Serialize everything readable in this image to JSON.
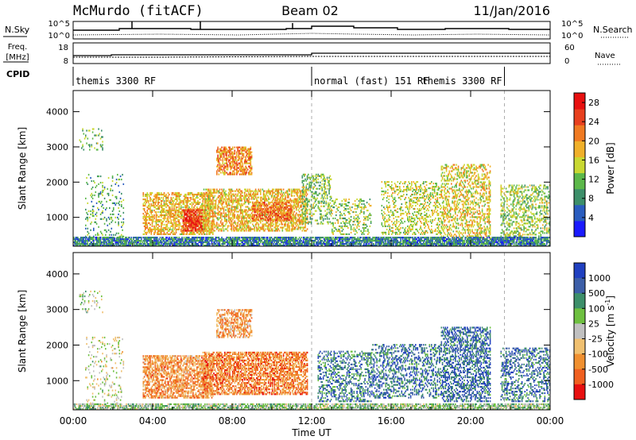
{
  "header": {
    "station": "McMurdo (fitACF)",
    "beam": "Beam 02",
    "date": "11/Jan/2016"
  },
  "noise_panel": {
    "left_label": "N.Sky",
    "right_label": "N.Search",
    "left_ticks": [
      "10^5",
      "10^0"
    ],
    "right_ticks": [
      "10^5",
      "10^0"
    ]
  },
  "freq_panel": {
    "left_label_line1": "Freq.",
    "left_label_line2": "[MHz]",
    "right_label": "Nave",
    "left_ticks": [
      "18",
      "8"
    ],
    "right_ticks": [
      "60",
      "0"
    ]
  },
  "cpid": {
    "label": "CPID",
    "segments": [
      {
        "text": "themis 3300 RF",
        "start_h": 0
      },
      {
        "text": "normal (fast) 151 RF",
        "start_h": 12
      },
      {
        "text": "themis 3300 RF",
        "start_h": 21.7
      }
    ]
  },
  "x_axis": {
    "label": "Time UT",
    "range_h": [
      0,
      24
    ],
    "ticks": [
      "00:00",
      "04:00",
      "08:00",
      "12:00",
      "16:00",
      "20:00",
      "00:00"
    ],
    "tick_hours": [
      0,
      4,
      8,
      12,
      16,
      20,
      24
    ]
  },
  "chart_data": [
    {
      "type": "heatmap",
      "title": "Power",
      "xlabel": "Time UT",
      "ylabel": "Slant Range [km]",
      "xlim": [
        0,
        24
      ],
      "ylim": [
        180,
        4600
      ],
      "yticks": [
        "1000",
        "2000",
        "3000",
        "4000"
      ],
      "ytick_values": [
        1000,
        2000,
        3000,
        4000
      ],
      "colorbar": {
        "label": "Power [dB]",
        "range": [
          0,
          30
        ],
        "ticks": [
          "4",
          "8",
          "12",
          "16",
          "20",
          "24",
          "28"
        ],
        "tick_values": [
          4,
          8,
          12,
          16,
          20,
          24,
          28
        ],
        "colors": [
          "#1a1aff",
          "#2a5dbf",
          "#3d8f6a",
          "#5cb84a",
          "#c9d832",
          "#f0b02a",
          "#f07a22",
          "#e8401e",
          "#e81010"
        ]
      },
      "echo_regions": [
        {
          "t0": 0.3,
          "t1": 1.5,
          "r0": 2900,
          "r1": 3500,
          "density": 0.18,
          "level": 0.4
        },
        {
          "t0": 0.6,
          "t1": 2.5,
          "r0": 300,
          "r1": 2200,
          "density": 0.12,
          "level": 0.35
        },
        {
          "t0": 3.5,
          "t1": 7.0,
          "r0": 500,
          "r1": 1700,
          "density": 0.55,
          "level": 0.6
        },
        {
          "t0": 5.5,
          "t1": 6.6,
          "r0": 600,
          "r1": 1200,
          "density": 0.7,
          "level": 0.85
        },
        {
          "t0": 7.2,
          "t1": 9.0,
          "r0": 2200,
          "r1": 3000,
          "density": 0.6,
          "level": 0.7
        },
        {
          "t0": 6.5,
          "t1": 11.8,
          "r0": 600,
          "r1": 1800,
          "density": 0.55,
          "level": 0.6
        },
        {
          "t0": 9.0,
          "t1": 11.0,
          "r0": 900,
          "r1": 1400,
          "density": 0.6,
          "level": 0.75
        },
        {
          "t0": 11.5,
          "t1": 13.0,
          "r0": 800,
          "r1": 2200,
          "density": 0.35,
          "level": 0.4
        },
        {
          "t0": 13.0,
          "t1": 15.0,
          "r0": 500,
          "r1": 1500,
          "density": 0.25,
          "level": 0.45
        },
        {
          "t0": 15.5,
          "t1": 18.5,
          "r0": 500,
          "r1": 2000,
          "density": 0.3,
          "level": 0.5
        },
        {
          "t0": 18.5,
          "t1": 21.0,
          "r0": 400,
          "r1": 2500,
          "density": 0.4,
          "level": 0.55
        },
        {
          "t0": 21.5,
          "t1": 24.0,
          "r0": 400,
          "r1": 1900,
          "density": 0.35,
          "level": 0.45
        },
        {
          "t0": 0.0,
          "t1": 24.0,
          "r0": 180,
          "r1": 420,
          "density": 0.8,
          "level": 0.25
        }
      ]
    },
    {
      "type": "heatmap",
      "title": "Velocity",
      "xlabel": "Time UT",
      "ylabel": "Slant Range [km]",
      "xlim": [
        0,
        24
      ],
      "ylim": [
        180,
        4600
      ],
      "yticks": [
        "1000",
        "2000",
        "3000",
        "4000"
      ],
      "ytick_values": [
        1000,
        2000,
        3000,
        4000
      ],
      "colorbar": {
        "label": "Velocity [m s^-1]",
        "ticks": [
          "1000",
          "500",
          "100",
          "25",
          "-25",
          "-100",
          "-500",
          "-1000"
        ],
        "colors": [
          "#2040c0",
          "#3d5fa8",
          "#3d8f6a",
          "#6ec040",
          "#c0c0c0",
          "#f0c070",
          "#f09030",
          "#f06020",
          "#e81010"
        ]
      },
      "echo_regions": [
        {
          "t0": 0.3,
          "t1": 1.5,
          "r0": 2900,
          "r1": 3500,
          "density": 0.18,
          "level": 0.45
        },
        {
          "t0": 0.6,
          "t1": 2.5,
          "r0": 300,
          "r1": 2200,
          "density": 0.12,
          "level": 0.5
        },
        {
          "t0": 3.5,
          "t1": 7.0,
          "r0": 500,
          "r1": 1700,
          "density": 0.6,
          "level": 0.72
        },
        {
          "t0": 7.2,
          "t1": 9.0,
          "r0": 2200,
          "r1": 3000,
          "density": 0.55,
          "level": 0.7
        },
        {
          "t0": 6.5,
          "t1": 11.8,
          "r0": 600,
          "r1": 1800,
          "density": 0.65,
          "level": 0.75
        },
        {
          "t0": 12.3,
          "t1": 15.0,
          "r0": 400,
          "r1": 1800,
          "density": 0.35,
          "level": 0.22
        },
        {
          "t0": 15.0,
          "t1": 18.5,
          "r0": 500,
          "r1": 2000,
          "density": 0.35,
          "level": 0.2
        },
        {
          "t0": 18.5,
          "t1": 21.0,
          "r0": 400,
          "r1": 2500,
          "density": 0.45,
          "level": 0.18
        },
        {
          "t0": 21.5,
          "t1": 24.0,
          "r0": 400,
          "r1": 1900,
          "density": 0.35,
          "level": 0.2
        },
        {
          "t0": 0.0,
          "t1": 24.0,
          "r0": 180,
          "r1": 320,
          "density": 0.7,
          "level": 0.42
        }
      ]
    }
  ]
}
